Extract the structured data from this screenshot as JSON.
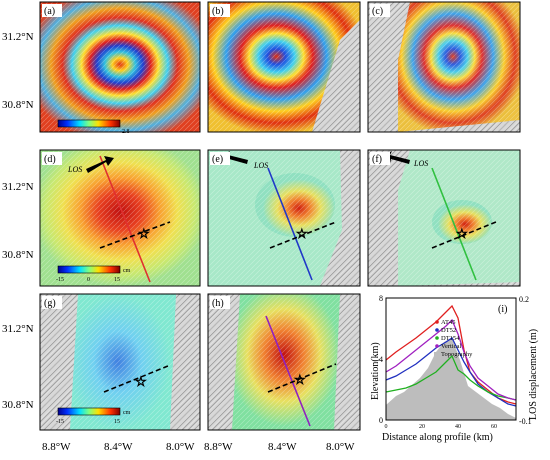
{
  "axis_labels": {
    "lat": [
      "31.2°N",
      "30.8°N"
    ],
    "lon": [
      "8.8°W",
      "8.4°W",
      "8.0°W"
    ]
  },
  "panels": [
    {
      "id": "a",
      "label": "(a)",
      "kind": "wrapped"
    },
    {
      "id": "b",
      "label": "(b)",
      "kind": "wrapped"
    },
    {
      "id": "c",
      "label": "(c)",
      "kind": "wrapped"
    },
    {
      "id": "d",
      "label": "(d)",
      "kind": "unwrapped",
      "los": "LOS",
      "profile_color": "#e03030"
    },
    {
      "id": "e",
      "label": "(e)",
      "kind": "unwrapped",
      "los": "LOS",
      "profile_color": "#2038c8"
    },
    {
      "id": "f",
      "label": "(f)",
      "kind": "unwrapped",
      "los": "LOS",
      "profile_color": "#30c040"
    },
    {
      "id": "g",
      "label": "(g)",
      "kind": "vertical"
    },
    {
      "id": "h",
      "label": "(h)",
      "kind": "vertical",
      "profile_color": "#9020c0"
    }
  ],
  "colorbars": {
    "wrapped": {
      "max": "2.8"
    },
    "unwrapped": {
      "min": "-15",
      "mid": "0",
      "max": "15",
      "unit": "cm"
    },
    "vertical": {
      "min": "-15",
      "max": "15",
      "unit": "cm"
    }
  },
  "profile_panel": {
    "label": "(i)",
    "xlabel": "Distance along profile (km)",
    "ylabel_left": "Elevation(km)",
    "ylabel_right": "LOS displacement (m)",
    "x_ticks": [
      "0",
      "20",
      "40",
      "60"
    ],
    "y_left_ticks": [
      "0",
      "4",
      "8"
    ],
    "y_right_ticks": [
      "-0.1",
      "0.2"
    ],
    "legend": [
      {
        "name": "AT45",
        "color": "#e02020"
      },
      {
        "name": "DT52",
        "color": "#2030c0"
      },
      {
        "name": "DT154",
        "color": "#20b020"
      },
      {
        "name": "Vertical",
        "color": "#a020c0"
      },
      {
        "name": "Topography",
        "color": "#bdbdbd"
      }
    ]
  }
}
